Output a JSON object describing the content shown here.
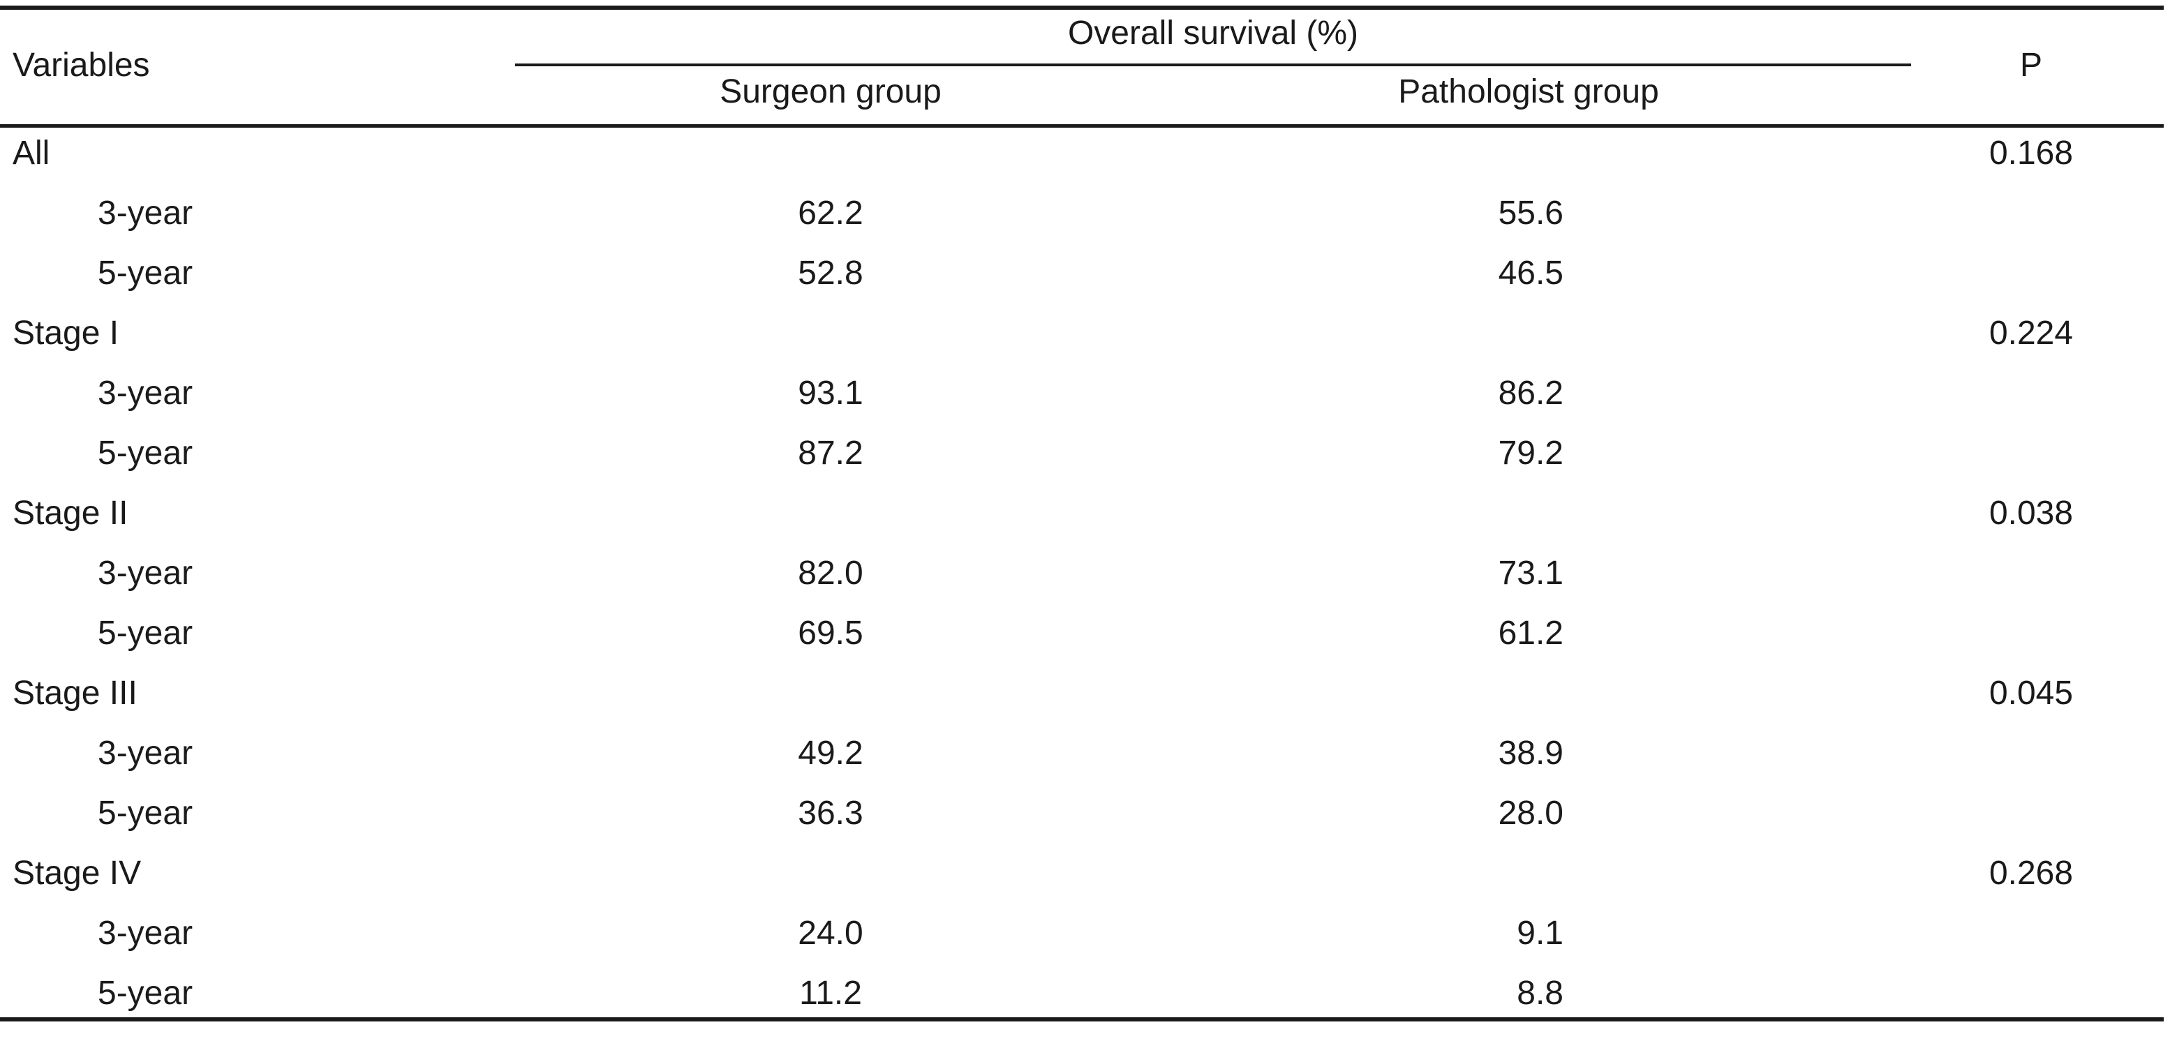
{
  "table": {
    "header": {
      "variables": "Variables",
      "group_title": "Overall survival (%)",
      "surgeon": "Surgeon group",
      "pathologist": "Pathologist group",
      "p": "P"
    },
    "rows": [
      {
        "label": "All",
        "surgeon": "",
        "pathologist": "",
        "p": "0.168",
        "indent": false
      },
      {
        "label": "3-year",
        "surgeon": "62.2",
        "pathologist": "55.6",
        "p": "",
        "indent": true
      },
      {
        "label": "5-year",
        "surgeon": "52.8",
        "pathologist": "46.5",
        "p": "",
        "indent": true
      },
      {
        "label": "Stage I",
        "surgeon": "",
        "pathologist": "",
        "p": "0.224",
        "indent": false
      },
      {
        "label": "3-year",
        "surgeon": "93.1",
        "pathologist": "86.2",
        "p": "",
        "indent": true
      },
      {
        "label": "5-year",
        "surgeon": "87.2",
        "pathologist": "79.2",
        "p": "",
        "indent": true
      },
      {
        "label": "Stage II",
        "surgeon": "",
        "pathologist": "",
        "p": "0.038",
        "indent": false
      },
      {
        "label": "3-year",
        "surgeon": "82.0",
        "pathologist": "73.1",
        "p": "",
        "indent": true
      },
      {
        "label": "5-year",
        "surgeon": "69.5",
        "pathologist": "61.2",
        "p": "",
        "indent": true
      },
      {
        "label": "Stage III",
        "surgeon": "",
        "pathologist": "",
        "p": "0.045",
        "indent": false
      },
      {
        "label": "3-year",
        "surgeon": "49.2",
        "pathologist": "38.9",
        "p": "",
        "indent": true
      },
      {
        "label": "5-year",
        "surgeon": "36.3",
        "pathologist": "28.0",
        "p": "",
        "indent": true
      },
      {
        "label": "Stage IV",
        "surgeon": "",
        "pathologist": "",
        "p": "0.268",
        "indent": false
      },
      {
        "label": "3-year",
        "surgeon": "24.0",
        "pathologist": "9.1",
        "p": "",
        "indent": true
      },
      {
        "label": "5-year",
        "surgeon": "11.2",
        "pathologist": "8.8",
        "p": "",
        "indent": true
      }
    ]
  }
}
